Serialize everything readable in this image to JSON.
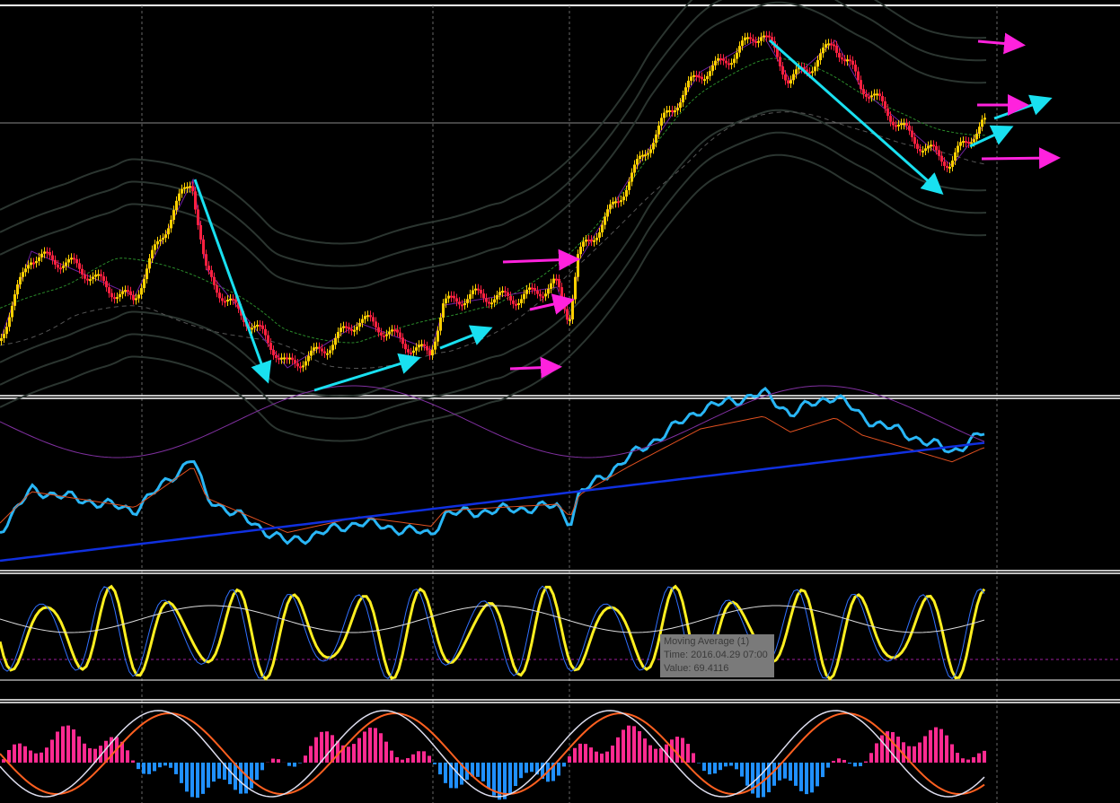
{
  "tooltip": {
    "title": "Moving Average (1)",
    "time": "Time: 2016.04.29 07:00",
    "value": "Value: 69.4116"
  }
}
